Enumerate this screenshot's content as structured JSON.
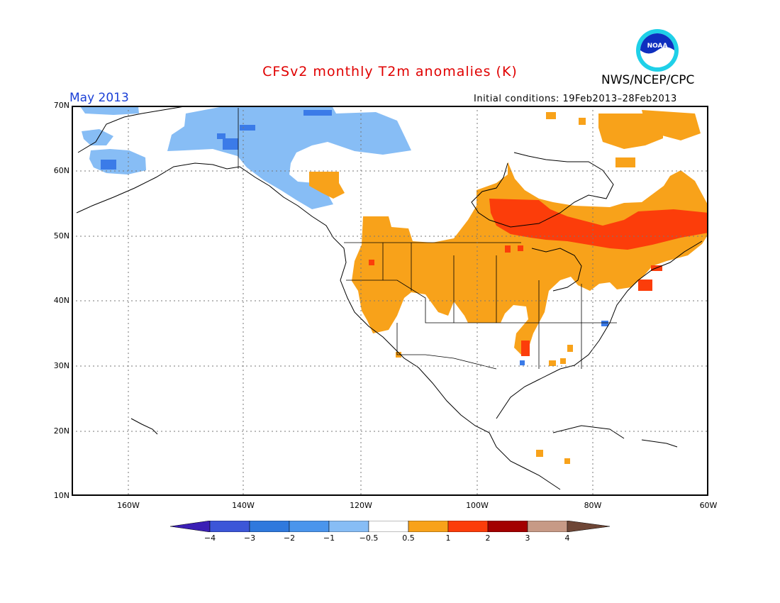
{
  "header": {
    "title": "CFSv2 monthly T2m anomalies (K)",
    "month": "May 2013",
    "agency": "NWS/NCEP/CPC",
    "initial_conditions": "Initial conditions: 19Feb2013–28Feb2013",
    "logo_text": "NOAA"
  },
  "colors": {
    "title": "#e00000",
    "month": "#1a3fd6",
    "cold_strong": "#3b7be8",
    "cold_weak": "#87bdf5",
    "warm_weak": "#f8a21a",
    "warm_mid": "#fc3d0a",
    "coast": "#000000",
    "grid": "#777777"
  },
  "axes": {
    "lat_labels": [
      "70N",
      "60N",
      "50N",
      "40N",
      "30N",
      "20N",
      "10N"
    ],
    "lon_labels": [
      "160W",
      "140W",
      "120W",
      "100W",
      "80W",
      "60W"
    ],
    "lat_range": [
      10,
      70
    ],
    "lon_range": [
      -171,
      -60
    ]
  },
  "colorbar": {
    "labels": [
      "−4",
      "−3",
      "−2",
      "−1",
      "−0.5",
      "0.5",
      "1",
      "2",
      "3",
      "4"
    ],
    "colors": [
      "#3b1fb5",
      "#3c56d8",
      "#2f79dd",
      "#4a95ec",
      "#87bdf5",
      "#ffffff",
      "#f8a21a",
      "#fc3d0a",
      "#a30000",
      "#c79a86",
      "#6e4636"
    ]
  },
  "anomaly_regions": [
    {
      "level": "cold_weak",
      "area": "Alaska and NW Canada"
    },
    {
      "level": "cold_strong",
      "area": "Western Alaska / Yukon pockets"
    },
    {
      "level": "warm_weak",
      "area": "Western and Central US, Canadian Prairies"
    },
    {
      "level": "warm_mid",
      "area": "Hudson Bay to Quebec, New England"
    },
    {
      "level": "warm_weak",
      "area": "Canadian Arctic islands"
    }
  ]
}
